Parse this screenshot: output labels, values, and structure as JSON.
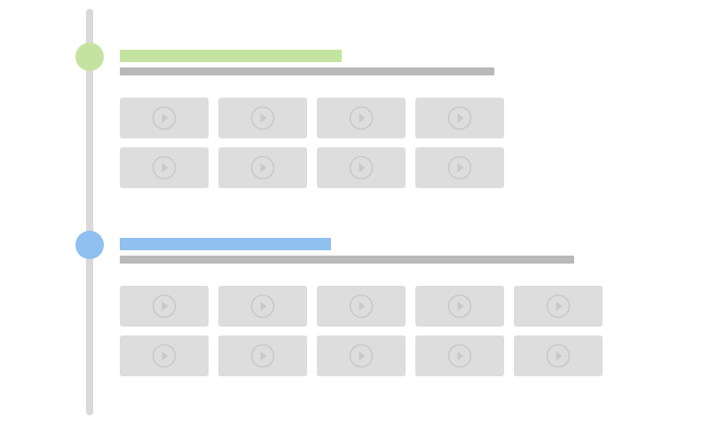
{
  "colors": {
    "track": "#d9d9d9",
    "section_1_accent": "#c5e3a0",
    "section_2_accent": "#8fc0ef",
    "text_placeholder": "#b9b9b9",
    "tile": "#dddddd",
    "play_icon": "#c9c9c9"
  },
  "sections": [
    {
      "tile_icon": "play-circle-icon",
      "rows": [
        [
          "video",
          "video",
          "video",
          "video"
        ],
        [
          "video",
          "video",
          "video",
          "video"
        ]
      ]
    },
    {
      "tile_icon": "play-circle-icon",
      "rows": [
        [
          "video",
          "video",
          "video",
          "video",
          "video"
        ],
        [
          "video",
          "video",
          "video",
          "video",
          "video"
        ]
      ]
    }
  ]
}
